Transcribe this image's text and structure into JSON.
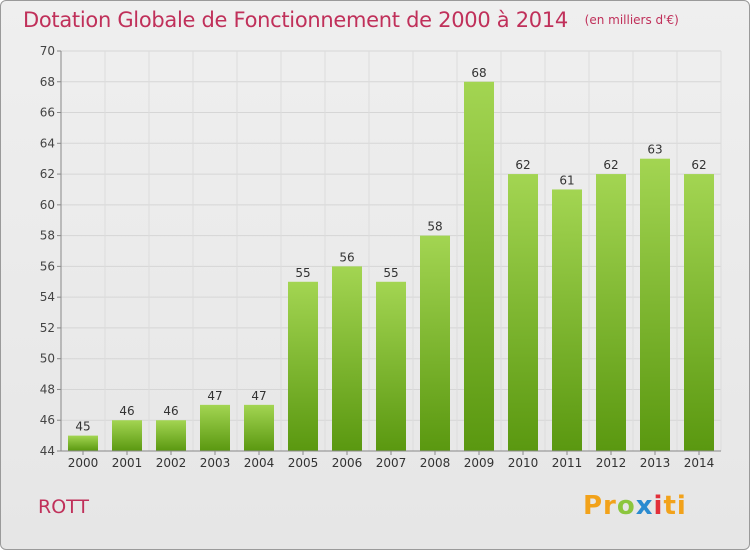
{
  "header": {
    "title": "Dotation Globale de Fonctionnement de 2000 à 2014",
    "unit": "(en milliers d'€)"
  },
  "footer": {
    "place": "ROTT",
    "logo_text": [
      "Pr",
      "o",
      "x",
      "i",
      "ti"
    ]
  },
  "colors": {
    "title": "#c0305a",
    "bar_light": "#9fd24e",
    "bar_dark": "#5e9c12",
    "grid": "#d6d6d6"
  },
  "chart_data": {
    "type": "bar",
    "categories": [
      "2000",
      "2001",
      "2002",
      "2003",
      "2004",
      "2005",
      "2006",
      "2007",
      "2008",
      "2009",
      "2010",
      "2011",
      "2012",
      "2013",
      "2014"
    ],
    "values": [
      45,
      46,
      46,
      47,
      47,
      55,
      56,
      55,
      58,
      68,
      62,
      61,
      62,
      63,
      62
    ],
    "title": "Dotation Globale de Fonctionnement de 2000 à 2014",
    "subtitle": "(en milliers d'€)",
    "xlabel": "",
    "ylabel": "",
    "ylim": [
      44,
      70
    ],
    "yticks": [
      44,
      46,
      48,
      50,
      52,
      54,
      56,
      58,
      60,
      62,
      64,
      66,
      68,
      70
    ],
    "grid": true,
    "data_labels": true
  }
}
